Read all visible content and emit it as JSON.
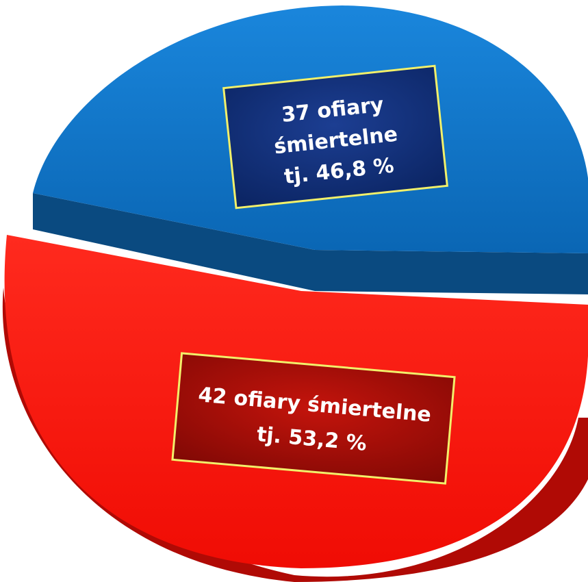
{
  "chart_data": {
    "type": "pie",
    "title": "",
    "slices": [
      {
        "value": 37,
        "percent": 46.8,
        "label_lines": [
          "37 ofiary",
          "śmiertelne",
          "tj. 46,8 %"
        ],
        "color": "#0b72c4",
        "side_color": "#0a4a80",
        "box_color": "#0f2d74"
      },
      {
        "value": 42,
        "percent": 53.2,
        "label_lines": [
          "42 ofiary śmiertelne",
          "tj. 53,2 %"
        ],
        "color": "#ff1a12",
        "side_color": "#b00a05",
        "box_color": "#a00c08"
      }
    ],
    "label_border_color": "#f2f06a",
    "style": "3d-exploded"
  }
}
